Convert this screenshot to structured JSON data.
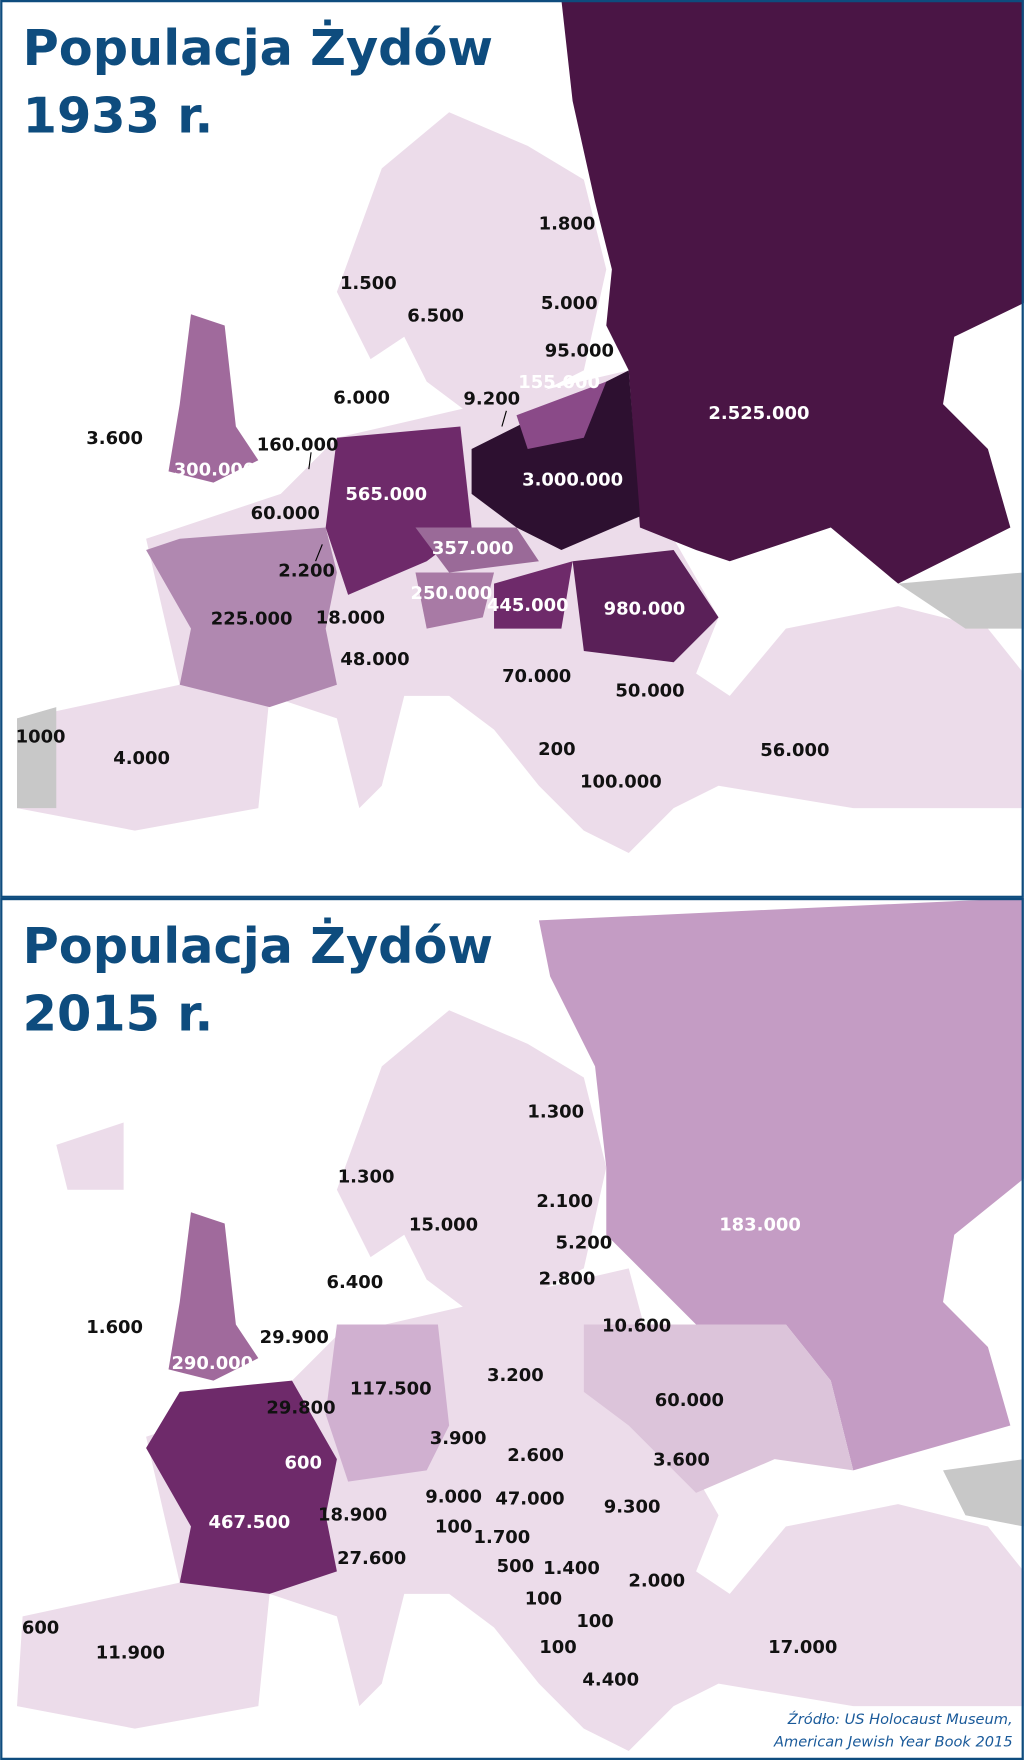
{
  "maps": [
    {
      "title": [
        "Populacja Żydów",
        "1933 r."
      ],
      "labels": [
        "1.800",
        "1.500",
        "6.500",
        "5.000",
        "95.000",
        "155.000",
        "9.200",
        "6.000",
        "2.525.000",
        "3.600",
        "160.000",
        "300.000",
        "565.000",
        "3.000.000",
        "60.000",
        "357.000",
        "2.200",
        "250.000",
        "445.000",
        "980.000",
        "225.000",
        "18.000",
        "48.000",
        "70.000",
        "50.000",
        "1000",
        "4.000",
        "200",
        "56.000",
        "100.000"
      ]
    },
    {
      "title": [
        "Populacja Żydów",
        "2015 r."
      ],
      "labels": [
        "1.300",
        "1.300",
        "15.000",
        "2.100",
        "5.200",
        "183.000",
        "6.400",
        "2.800",
        "1.600",
        "10.600",
        "29.900",
        "290.000",
        "117.500",
        "3.200",
        "60.000",
        "29.800",
        "3.900",
        "2.600",
        "600",
        "3.600",
        "9.000",
        "47.000",
        "9.300",
        "18.900",
        "467.500",
        "100",
        "1.700",
        "27.600",
        "500",
        "1.400",
        "2.000",
        "100",
        "600",
        "100",
        "11.900",
        "17.000",
        "100",
        "4.400"
      ]
    }
  ],
  "source": [
    "Źródło: US Holocaust Museum,",
    "American Jewish Year Book 2015"
  ]
}
